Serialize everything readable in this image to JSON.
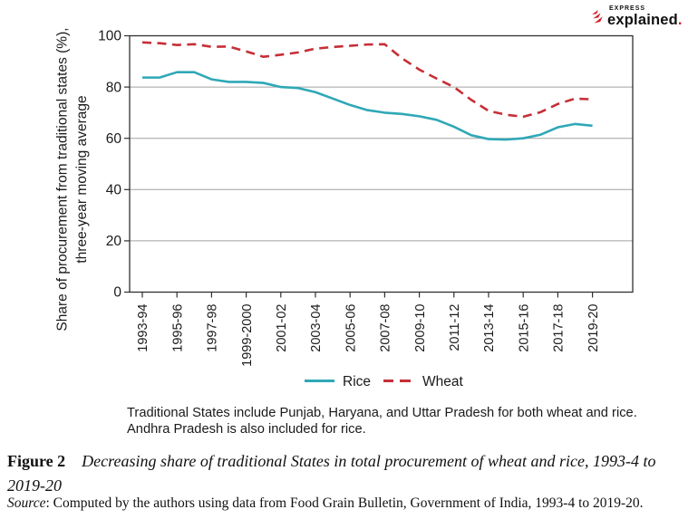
{
  "brand": {
    "express": "EXPRESS",
    "explained": "explained",
    "dot": ".",
    "accent_red": "#d0222c"
  },
  "chart_data": {
    "type": "line",
    "ylabel_line1": "Share of procurement from traditional states (%),",
    "ylabel_line2": "three-year moving average",
    "ylim": [
      0,
      100
    ],
    "yticks": [
      0,
      20,
      40,
      60,
      80,
      100
    ],
    "grid": "horizontal",
    "legend_position": "bottom",
    "categories": [
      "1993-94",
      "1994-95",
      "1995-96",
      "1996-97",
      "1997-98",
      "1998-99",
      "1999-2000",
      "2000-01",
      "2001-02",
      "2002-03",
      "2003-04",
      "2004-05",
      "2005-06",
      "2006-07",
      "2007-08",
      "2008-09",
      "2009-10",
      "2010-11",
      "2011-12",
      "2012-13",
      "2013-14",
      "2014-15",
      "2015-16",
      "2016-17",
      "2017-18",
      "2018-19",
      "2019-20"
    ],
    "x_tick_labels": [
      "1993-94",
      "1995-96",
      "1997-98",
      "1999-2000",
      "2001-02",
      "2003-04",
      "2005-06",
      "2007-08",
      "2009-10",
      "2011-12",
      "2013-14",
      "2015-16",
      "2017-18",
      "2019-20"
    ],
    "series": [
      {
        "name": "Rice",
        "style": "solid",
        "color": "#2fa8b6",
        "values": [
          83.7,
          83.7,
          85.8,
          85.8,
          83,
          82,
          82,
          81.6,
          80,
          79.6,
          78,
          75.5,
          73,
          71,
          70,
          69.5,
          68.6,
          67.2,
          64.5,
          61.2,
          59.7,
          59.5,
          60,
          61.4,
          64.3,
          65.6,
          64.9
        ]
      },
      {
        "name": "Wheat",
        "style": "dashed",
        "color": "#c62f38",
        "values": [
          97.4,
          97.1,
          96.4,
          96.7,
          95.7,
          95.8,
          93.9,
          91.8,
          92.6,
          93.5,
          95,
          95.6,
          96.1,
          96.6,
          96.7,
          91.2,
          86.8,
          83.3,
          80,
          75,
          70.7,
          69.2,
          68.4,
          70.2,
          73.4,
          75.5,
          75.2
        ]
      }
    ],
    "colors": {
      "grid": "#a0a0a0",
      "spine": "#2f2f2f",
      "text": "#1a1a1a"
    }
  },
  "note": {
    "line1": "Traditional States include Punjab, Haryana, and Uttar Pradesh for both wheat and rice.",
    "line2": "Andhra Pradesh is also included for rice."
  },
  "caption": {
    "label": "Figure 2",
    "text": "Decreasing share of traditional States in total procurement of wheat and rice, 1993-4 to 2019-20"
  },
  "source": {
    "label": "Source",
    "text": ": Computed by the authors using data from Food Grain Bulletin, Government of India, 1993-4 to 2019-20."
  }
}
